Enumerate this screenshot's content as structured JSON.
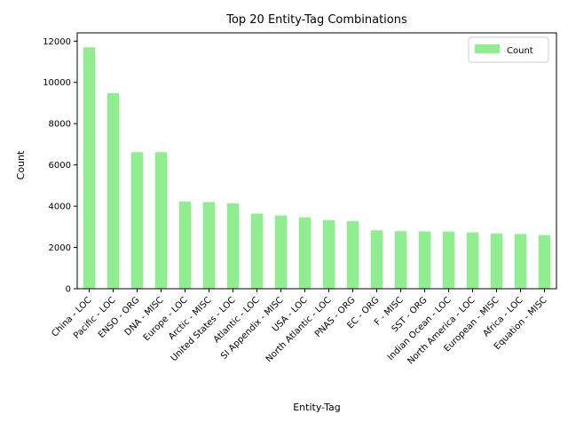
{
  "chart_data": {
    "type": "bar",
    "title": "Top 20 Entity-Tag Combinations",
    "xlabel": "Entity-Tag",
    "ylabel": "Count",
    "ylim": [
      0,
      12400
    ],
    "yticks": [
      0,
      2000,
      4000,
      6000,
      8000,
      10000,
      12000
    ],
    "grid": false,
    "legend": {
      "position": "top-right",
      "entries": [
        "Count"
      ]
    },
    "colors": {
      "bar": "#90ee90"
    },
    "categories": [
      "China - LOC",
      "Pacific - LOC",
      "ENSO - ORG",
      "DNA - MISC",
      "Europe - LOC",
      "Arctic - MISC",
      "United States - LOC",
      "Atlantic - LOC",
      "SI Appendix - MISC",
      "USA - LOC",
      "North Atlantic - LOC",
      "PNAS - ORG",
      "EC - ORG",
      "F - MISC",
      "SST - ORG",
      "Indian Ocean - LOC",
      "North America - LOC",
      "European - MISC",
      "Africa - LOC",
      "Equation - MISC"
    ],
    "series": [
      {
        "name": "Count",
        "values": [
          11700,
          9480,
          6620,
          6620,
          4220,
          4200,
          4140,
          3640,
          3550,
          3460,
          3330,
          3280,
          2830,
          2790,
          2780,
          2770,
          2730,
          2680,
          2650,
          2600
        ]
      }
    ]
  }
}
